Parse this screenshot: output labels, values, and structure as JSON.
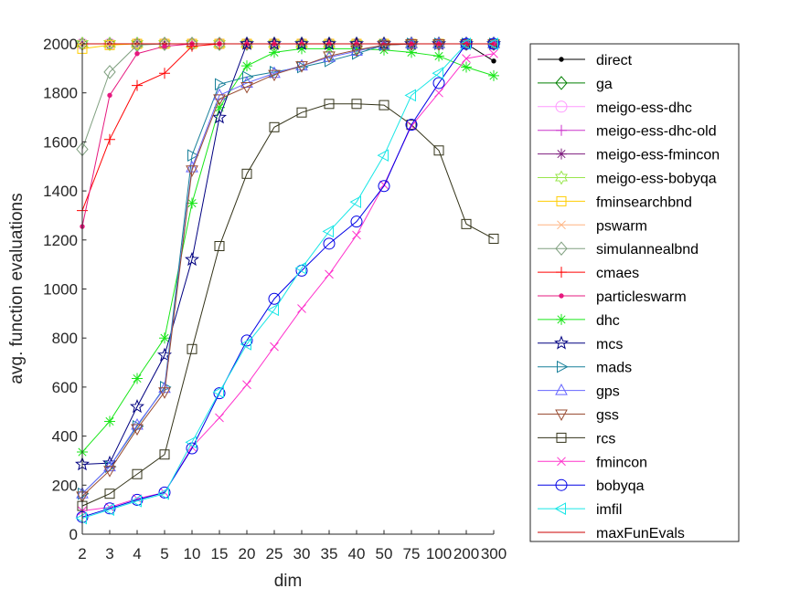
{
  "chart_data": {
    "type": "line",
    "xlabel": "dim",
    "ylabel": "avg. function evaluations",
    "categories": [
      "2",
      "3",
      "4",
      "5",
      "10",
      "15",
      "20",
      "25",
      "30",
      "35",
      "40",
      "50",
      "75",
      "100",
      "200",
      "300"
    ],
    "yticks": [
      0,
      200,
      400,
      600,
      800,
      1000,
      1200,
      1400,
      1600,
      1800,
      2000
    ],
    "ylim": [
      0,
      2000
    ],
    "grid": false,
    "legend_position": "right",
    "series": [
      {
        "name": "direct",
        "color": "#000000",
        "marker": "dot",
        "values": [
          2000,
          2000,
          2000,
          2000,
          2000,
          2000,
          2000,
          2000,
          2000,
          2000,
          2000,
          2000,
          2000,
          2000,
          2000,
          1930
        ]
      },
      {
        "name": "ga",
        "color": "#007f00",
        "marker": "diamond",
        "values": [
          2000,
          2000,
          2000,
          2000,
          2000,
          2000,
          2000,
          2000,
          2000,
          2000,
          2000,
          2000,
          2000,
          2000,
          2000,
          2000
        ]
      },
      {
        "name": "meigo-ess-dhc",
        "color": "#ff99ff",
        "marker": "circle",
        "values": [
          2000,
          2000,
          2000,
          2000,
          2000,
          2000,
          2000,
          2000,
          2000,
          2000,
          2000,
          2000,
          2000,
          2000,
          2000,
          2000
        ]
      },
      {
        "name": "meigo-ess-dhc-old",
        "color": "#cc33cc",
        "marker": "plus",
        "values": [
          2000,
          2000,
          2000,
          2000,
          2000,
          2000,
          2000,
          2000,
          2000,
          2000,
          2000,
          2000,
          2000,
          2000,
          2000,
          2000
        ]
      },
      {
        "name": "meigo-ess-fmincon",
        "color": "#7f1f7f",
        "marker": "asterisk",
        "values": [
          2000,
          2000,
          2000,
          2000,
          2000,
          2000,
          2000,
          2000,
          2000,
          2000,
          2000,
          2000,
          2000,
          2000,
          2000,
          2000
        ]
      },
      {
        "name": "meigo-ess-bobyqa",
        "color": "#99e64d",
        "marker": "hexagram",
        "values": [
          2000,
          2000,
          2000,
          2000,
          2000,
          2000,
          2000,
          2000,
          2000,
          2000,
          2000,
          2000,
          2000,
          2000,
          2000,
          2000
        ]
      },
      {
        "name": "fminsearchbnd",
        "color": "#ffcc00",
        "marker": "square",
        "values": [
          1980,
          1995,
          2000,
          2000,
          2000,
          2000,
          2000,
          2000,
          2000,
          2000,
          2000,
          2000,
          2000,
          2000,
          2000,
          2000
        ]
      },
      {
        "name": "pswarm",
        "color": "#ffb380",
        "marker": "cross",
        "values": [
          2000,
          2000,
          2000,
          2000,
          2000,
          2000,
          2000,
          2000,
          2000,
          2000,
          2000,
          2000,
          2000,
          2000,
          2000,
          2000
        ]
      },
      {
        "name": "simulannealbnd",
        "color": "#80a080",
        "marker": "diamond",
        "values": [
          1570,
          1885,
          1995,
          2000,
          2000,
          2000,
          2000,
          2000,
          2000,
          2000,
          2000,
          2000,
          2000,
          2000,
          2000,
          2000
        ]
      },
      {
        "name": "cmaes",
        "color": "#ff0000",
        "marker": "plus",
        "values": [
          1320,
          1610,
          1830,
          1880,
          1990,
          2000,
          2000,
          2000,
          2000,
          2000,
          2000,
          2000,
          2000,
          2000,
          2000,
          2000
        ]
      },
      {
        "name": "particleswarm",
        "color": "#e6197f",
        "marker": "dot",
        "values": [
          1255,
          1790,
          1960,
          1990,
          2000,
          2000,
          2000,
          2000,
          2000,
          2000,
          2000,
          2000,
          2000,
          2000,
          2000,
          2000
        ]
      },
      {
        "name": "dhc",
        "color": "#19e619",
        "marker": "asterisk",
        "values": [
          335,
          460,
          635,
          800,
          1350,
          1740,
          1910,
          1965,
          1980,
          1980,
          1980,
          1975,
          1965,
          1950,
          1905,
          1870
        ]
      },
      {
        "name": "mcs",
        "color": "#000080",
        "marker": "pentagram",
        "values": [
          285,
          290,
          520,
          730,
          1120,
          1700,
          2000,
          2000,
          2000,
          2000,
          2000,
          2000,
          2000,
          2000,
          2000,
          2000
        ]
      },
      {
        "name": "mads",
        "color": "#19809a",
        "marker": "triangle-right",
        "values": [
          165,
          275,
          440,
          600,
          1545,
          1835,
          1865,
          1885,
          1905,
          1930,
          1960,
          1995,
          2000,
          2000,
          2000,
          2000
        ]
      },
      {
        "name": "gps",
        "color": "#6666ff",
        "marker": "triangle-up",
        "values": [
          165,
          275,
          445,
          595,
          1495,
          1790,
          1840,
          1880,
          1910,
          1945,
          1970,
          1995,
          2000,
          2000,
          2000,
          2000
        ]
      },
      {
        "name": "gss",
        "color": "#994d33",
        "marker": "triangle-down",
        "values": [
          155,
          260,
          430,
          580,
          1485,
          1775,
          1825,
          1875,
          1910,
          1950,
          1975,
          1995,
          2000,
          2000,
          2000,
          2000
        ]
      },
      {
        "name": "rcs",
        "color": "#333319",
        "marker": "square",
        "values": [
          115,
          165,
          245,
          325,
          755,
          1175,
          1470,
          1660,
          1720,
          1755,
          1755,
          1750,
          1670,
          1565,
          1265,
          1205
        ]
      },
      {
        "name": "fmincon",
        "color": "#ff33cc",
        "marker": "cross",
        "values": [
          95,
          110,
          145,
          170,
          355,
          475,
          610,
          765,
          920,
          1060,
          1220,
          1425,
          1665,
          1800,
          1940,
          1960
        ]
      },
      {
        "name": "bobyqa",
        "color": "#0000e6",
        "marker": "circle",
        "values": [
          70,
          105,
          140,
          170,
          350,
          575,
          790,
          960,
          1075,
          1185,
          1275,
          1420,
          1670,
          1840,
          2000,
          2000
        ]
      },
      {
        "name": "imfil",
        "color": "#19e6e6",
        "marker": "triangle-left",
        "values": [
          65,
          100,
          135,
          165,
          375,
          580,
          775,
          915,
          1085,
          1235,
          1355,
          1545,
          1790,
          1880,
          2000,
          2000
        ]
      },
      {
        "name": "maxFunEvals",
        "color": "#cc0000",
        "marker": "none",
        "values": [
          2000,
          2000,
          2000,
          2000,
          2000,
          2000,
          2000,
          2000,
          2000,
          2000,
          2000,
          2000,
          2000,
          2000,
          2000,
          2000
        ]
      }
    ]
  }
}
